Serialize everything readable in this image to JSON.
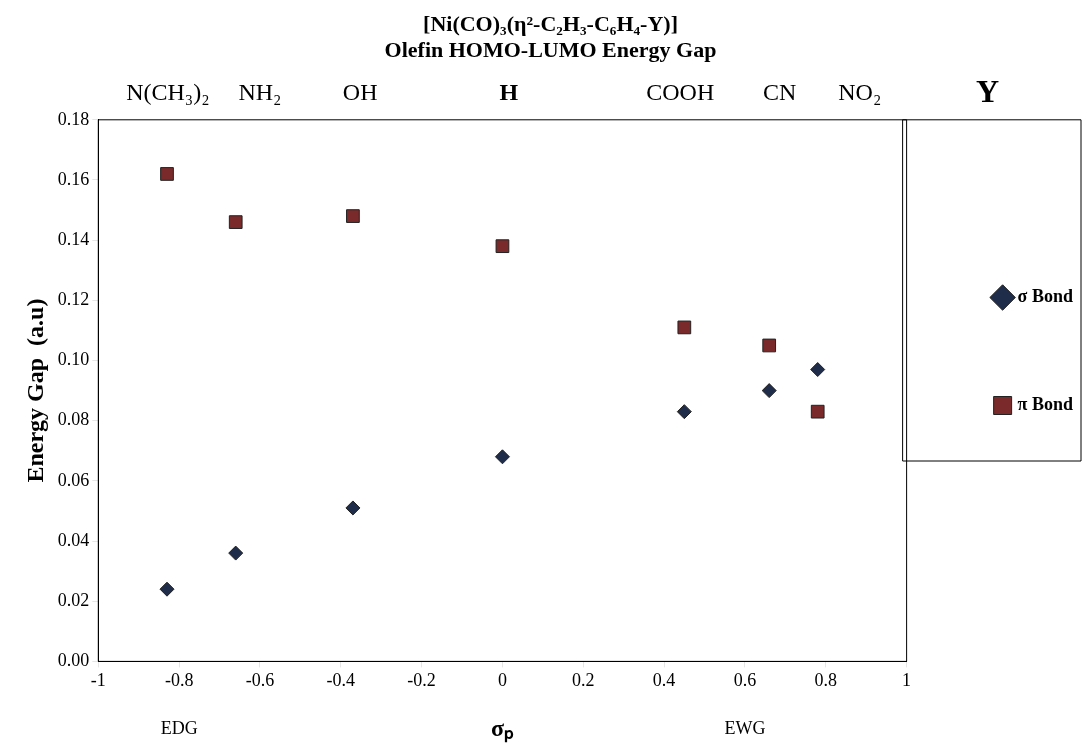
{
  "chart_data": {
    "type": "scatter",
    "title": "[Ni(CO)₃(η²-C₂H₃-C₆H₄-Y)]",
    "subtitle": "Olefin HOMO-LUMO Energy Gap",
    "ylabel": "Energy Gap  (a.u)",
    "annotations": [
      "N(CH₃)₂",
      "NH₂",
      "OH",
      "H",
      "COOH",
      "CN",
      "NO₂",
      "Y",
      "EDG",
      "σₚ",
      "EWG"
    ],
    "series": [
      {
        "name": "σ Bond",
        "color": "#1f2d4a",
        "marker": "diamond",
        "x": [
          -0.83,
          -0.66,
          -0.37,
          0,
          0.45,
          0.66,
          0.78
        ],
        "values": [
          0.024,
          0.036,
          0.051,
          0.068,
          0.083,
          0.09,
          0.097
        ]
      },
      {
        "name": "π Bond",
        "color": "#7a2a2a",
        "marker": "square",
        "x": [
          -0.83,
          -0.66,
          -0.37,
          0,
          0.45,
          0.66,
          0.78
        ],
        "values": [
          0.162,
          0.146,
          0.148,
          0.138,
          0.111,
          0.105,
          0.083
        ]
      }
    ],
    "xlim": [
      -1,
      1
    ],
    "xticks": [
      -1,
      -0.8,
      -0.6,
      -0.4,
      -0.2,
      0,
      0.2,
      0.4,
      0.6,
      0.8,
      1
    ],
    "ylim": [
      0,
      0.18
    ],
    "yticks": [
      {
        "value": 0,
        "label": "0.00"
      },
      0.02,
      0.04,
      0.06,
      0.08,
      {
        "value": 0.1,
        "label": "0.10"
      },
      0.12,
      0.14,
      0.16,
      0.18
    ],
    "grid": false,
    "legend": "right"
  }
}
